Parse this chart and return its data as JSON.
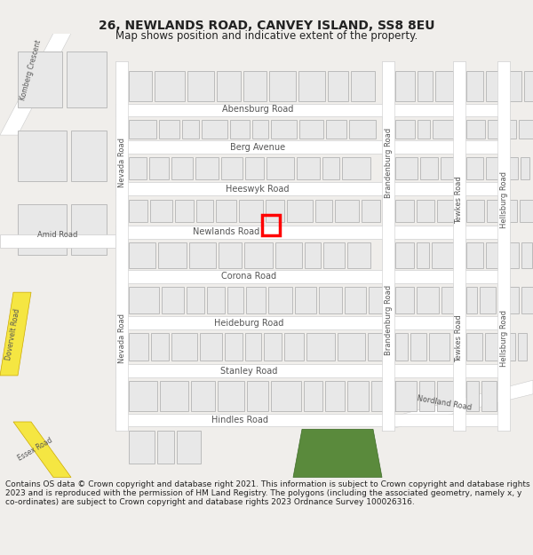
{
  "title": "26, NEWLANDS ROAD, CANVEY ISLAND, SS8 8EU",
  "subtitle": "Map shows position and indicative extent of the property.",
  "footer": "Contains OS data © Crown copyright and database right 2021. This information is subject to Crown copyright and database rights 2023 and is reproduced with the permission of HM Land Registry. The polygons (including the associated geometry, namely x, y co-ordinates) are subject to Crown copyright and database rights 2023 Ordnance Survey 100026316.",
  "bg_color": "#f0eeeb",
  "map_bg": "#f0eeeb",
  "road_color": "#ffffff",
  "road_outline": "#cccccc",
  "building_fill": "#e8e8e8",
  "building_outline": "#bbbbbb",
  "highlight_color": "#ff0000",
  "highlight_fill": "none",
  "road_label_color": "#555555",
  "title_color": "#222222",
  "footer_color": "#222222",
  "yellow_road_color": "#f5e642",
  "green_area_color": "#5a8a3c"
}
